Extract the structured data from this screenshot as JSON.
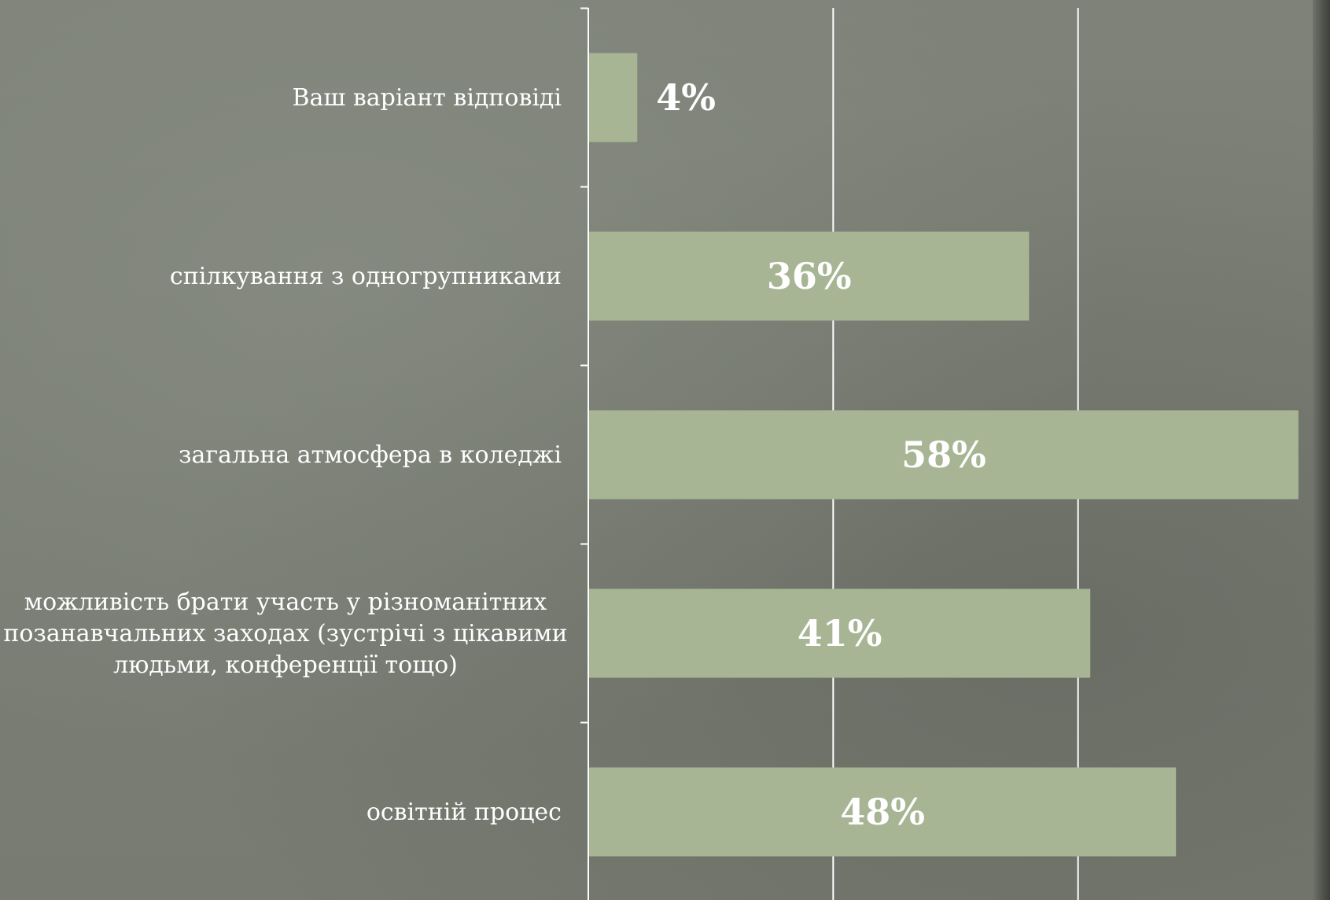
{
  "chart_data": {
    "type": "bar",
    "orientation": "horizontal",
    "categories": [
      "Ваш варіант відповіді",
      "спілкування з одногрупниками",
      "загальна атмосфера в коледжі",
      "можливість брати участь у різноманітних позанавчальних заходах (зустрічі з цікавими людьми, конференції тощо)",
      "освітній процес"
    ],
    "category_lines": [
      [
        "Ваш варіант відповіді"
      ],
      [
        "спілкування з одногрупниками"
      ],
      [
        "загальна атмосфера в коледжі"
      ],
      [
        "можливість брати участь у різноманітних",
        "позанавчальних заходах (зустрічі з цікавими",
        "людьми, конференції тощо)"
      ],
      [
        "освітній процес"
      ]
    ],
    "values": [
      4,
      36,
      58,
      41,
      48
    ],
    "data_labels": [
      "4%",
      "36%",
      "58%",
      "41%",
      "48%"
    ],
    "xlim": [
      0,
      60
    ],
    "grid": true,
    "legend": "none",
    "colors": {
      "bar": "#a7b594",
      "grid": "#ffffff",
      "text": "#ffffff",
      "background": "#7b7f75"
    }
  }
}
